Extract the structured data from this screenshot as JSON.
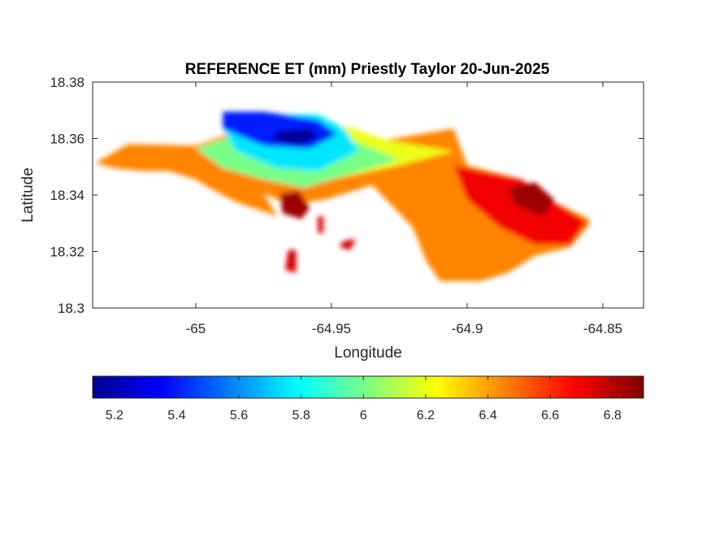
{
  "chart_data": {
    "type": "heatmap",
    "title": "REFERENCE ET (mm) Priestly Taylor 20-Jun-2025",
    "xlabel": "Longitude",
    "ylabel": "Latitude",
    "xlim": [
      -65.038,
      -64.835
    ],
    "ylim": [
      18.3,
      18.38
    ],
    "xticks": [
      -65,
      -64.95,
      -64.9,
      -64.85
    ],
    "xtick_labels": [
      "-65",
      "-64.95",
      "-64.9",
      "-64.85"
    ],
    "yticks": [
      18.3,
      18.32,
      18.34,
      18.36,
      18.38
    ],
    "ytick_labels": [
      "18.3",
      "18.32",
      "18.34",
      "18.36",
      "18.38"
    ],
    "colormap": "jet",
    "colorbar": {
      "placement": "bottom",
      "range": [
        5.13,
        6.9
      ],
      "ticks": [
        5.2,
        5.4,
        5.6,
        5.8,
        6,
        6.2,
        6.4,
        6.6,
        6.8
      ],
      "tick_labels": [
        "5.2",
        "5.4",
        "5.6",
        "5.8",
        "6",
        "6.2",
        "6.4",
        "6.6",
        "6.8"
      ],
      "stops": [
        "#00008f",
        "#0000ff",
        "#00ffff",
        "#ffff00",
        "#ff0000",
        "#800000"
      ]
    },
    "regions": [
      {
        "value": 6.45,
        "lon": [
          -65.037,
          -65.025,
          -65.0,
          -64.99,
          -64.975,
          -64.965,
          -64.95,
          -64.93,
          -64.905,
          -64.9,
          -64.88,
          -64.868,
          -64.855,
          -64.855,
          -64.862,
          -64.875,
          -64.885,
          -64.895,
          -64.91,
          -64.915,
          -64.92,
          -64.935,
          -64.952,
          -64.965,
          -64.975,
          -64.97,
          -64.985,
          -64.995,
          -65.0,
          -65.01,
          -65.02,
          -65.03,
          -65.037
        ],
        "lat": [
          18.3513,
          18.358,
          18.3575,
          18.361,
          18.3685,
          18.3655,
          18.3645,
          18.3595,
          18.3635,
          18.3505,
          18.3455,
          18.3375,
          18.3315,
          18.3295,
          18.3215,
          18.3185,
          18.3125,
          18.3095,
          18.3095,
          18.3165,
          18.3285,
          18.3435,
          18.3385,
          18.3365,
          18.3405,
          18.3325,
          18.3375,
          18.3425,
          18.3455,
          18.3485,
          18.3485,
          18.3495,
          18.3513
        ]
      },
      {
        "value": 6.7,
        "lon": [
          -64.905,
          -64.88,
          -64.868,
          -64.856,
          -64.862,
          -64.875,
          -64.888,
          -64.9
        ],
        "lat": [
          18.3505,
          18.3455,
          18.3375,
          18.3305,
          18.3225,
          18.3225,
          18.3285,
          18.3385
        ]
      },
      {
        "value": 6.85,
        "lon": [
          -64.885,
          -64.875,
          -64.868,
          -64.872,
          -64.882
        ],
        "lat": [
          18.3425,
          18.3445,
          18.3385,
          18.3325,
          18.3365
        ]
      },
      {
        "value": 6.85,
        "lon": [
          -64.969,
          -64.962,
          -64.958,
          -64.961,
          -64.968
        ],
        "lat": [
          18.3405,
          18.3415,
          18.3355,
          18.3315,
          18.3335
        ]
      },
      {
        "value": 6.2,
        "lon": [
          -64.98,
          -64.945,
          -64.93,
          -64.905,
          -64.925,
          -64.95,
          -64.98
        ],
        "lat": [
          18.3555,
          18.3645,
          18.3595,
          18.3555,
          18.3505,
          18.3455,
          18.3475
        ]
      },
      {
        "value": 6.0,
        "lon": [
          -65.0,
          -64.985,
          -64.965,
          -64.955,
          -64.94,
          -64.925,
          -64.95,
          -64.96,
          -64.975,
          -64.99
        ],
        "lat": [
          18.3565,
          18.3615,
          18.3635,
          18.3625,
          18.3585,
          18.3525,
          18.3455,
          18.3425,
          18.3455,
          18.3495
        ]
      },
      {
        "value": 5.75,
        "lon": [
          -64.99,
          -64.97,
          -64.955,
          -64.945,
          -64.94,
          -64.955,
          -64.97,
          -64.985
        ],
        "lat": [
          18.3635,
          18.3685,
          18.3685,
          18.3635,
          18.3555,
          18.3485,
          18.3495,
          18.3555
        ]
      },
      {
        "value": 5.4,
        "lon": [
          -64.99,
          -64.975,
          -64.955,
          -64.948,
          -64.958,
          -64.975,
          -64.99
        ],
        "lat": [
          18.3695,
          18.3695,
          18.3665,
          18.3615,
          18.3565,
          18.3575,
          18.3635
        ]
      },
      {
        "value": 5.15,
        "lon": [
          -64.97,
          -64.958,
          -64.955,
          -64.962,
          -64.972
        ],
        "lat": [
          18.3625,
          18.3635,
          18.3605,
          18.3575,
          18.3595
        ]
      },
      {
        "value": 6.75,
        "lon": [
          -64.946,
          -64.941,
          -64.943,
          -64.947
        ],
        "lat": [
          18.3235,
          18.3245,
          18.3205,
          18.3215
        ]
      },
      {
        "value": 6.75,
        "lon": [
          -64.966,
          -64.963,
          -64.963,
          -64.967
        ],
        "lat": [
          18.3205,
          18.3205,
          18.3125,
          18.3135
        ]
      },
      {
        "value": 6.75,
        "lon": [
          -64.955,
          -64.953,
          -64.953,
          -64.955
        ],
        "lat": [
          18.3325,
          18.3325,
          18.3265,
          18.3265
        ]
      }
    ]
  }
}
